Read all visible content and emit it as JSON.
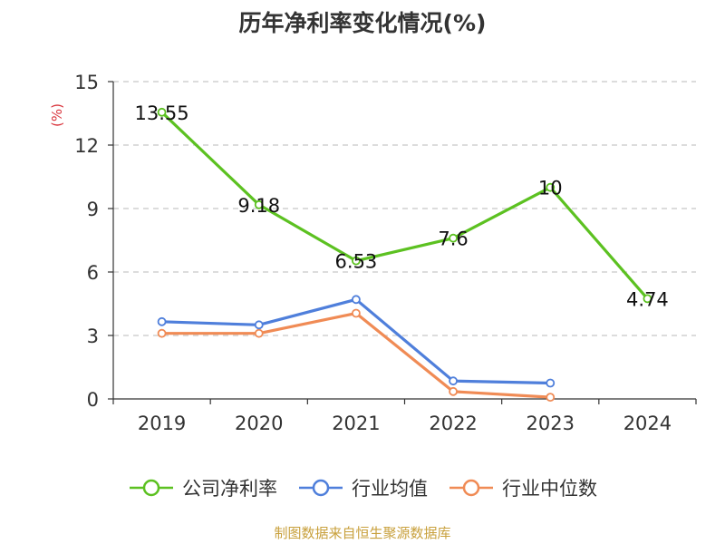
{
  "chart_data": {
    "type": "line",
    "title": "历年净利率变化情况(%)",
    "ylabel": "(%)",
    "categories": [
      "2019",
      "2020",
      "2021",
      "2022",
      "2023",
      "2024"
    ],
    "ylim": [
      0,
      15
    ],
    "yticks": [
      0,
      3,
      6,
      9,
      12,
      15
    ],
    "grid": true,
    "legend_position": "bottom",
    "series": [
      {
        "name": "公司净利率",
        "color": "#5cc121",
        "show_labels": true,
        "values": [
          13.55,
          9.18,
          6.53,
          7.6,
          10,
          4.74
        ]
      },
      {
        "name": "行业均值",
        "color": "#4f7fdb",
        "show_labels": false,
        "values": [
          3.65,
          3.5,
          4.7,
          0.85,
          0.75,
          null
        ]
      },
      {
        "name": "行业中位数",
        "color": "#f08b55",
        "show_labels": false,
        "values": [
          3.1,
          3.1,
          4.05,
          0.35,
          0.08,
          null
        ]
      }
    ]
  },
  "source_note": "制图数据来自恒生聚源数据库"
}
